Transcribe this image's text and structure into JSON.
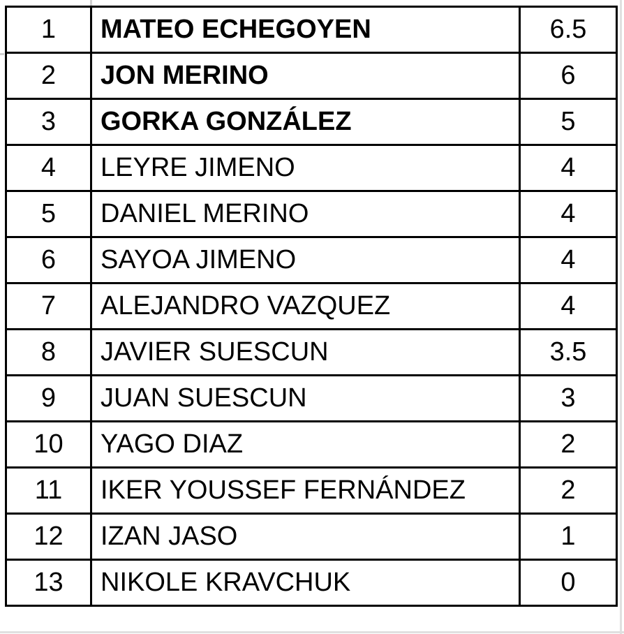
{
  "standings": [
    {
      "position": "1",
      "name": "MATEO ECHEGOYEN",
      "score": "6.5",
      "bold": true
    },
    {
      "position": "2",
      "name": "JON MERINO",
      "score": "6",
      "bold": true
    },
    {
      "position": "3",
      "name": "GORKA GONZÁLEZ",
      "score": "5",
      "bold": true
    },
    {
      "position": "4",
      "name": "LEYRE JIMENO",
      "score": "4",
      "bold": false
    },
    {
      "position": "5",
      "name": "DANIEL MERINO",
      "score": "4",
      "bold": false
    },
    {
      "position": "6",
      "name": "SAYOA JIMENO",
      "score": "4",
      "bold": false
    },
    {
      "position": "7",
      "name": "ALEJANDRO VAZQUEZ",
      "score": "4",
      "bold": false
    },
    {
      "position": "8",
      "name": "JAVIER SUESCUN",
      "score": "3.5",
      "bold": false
    },
    {
      "position": "9",
      "name": "JUAN SUESCUN",
      "score": "3",
      "bold": false
    },
    {
      "position": "10",
      "name": "YAGO DIAZ",
      "score": "2",
      "bold": false
    },
    {
      "position": "11",
      "name": "IKER YOUSSEF FERNÁNDEZ",
      "score": "2",
      "bold": false
    },
    {
      "position": "12",
      "name": "IZAN JASO",
      "score": "1",
      "bold": false
    },
    {
      "position": "13",
      "name": "NIKOLE KRAVCHUK",
      "score": "0",
      "bold": false
    }
  ]
}
